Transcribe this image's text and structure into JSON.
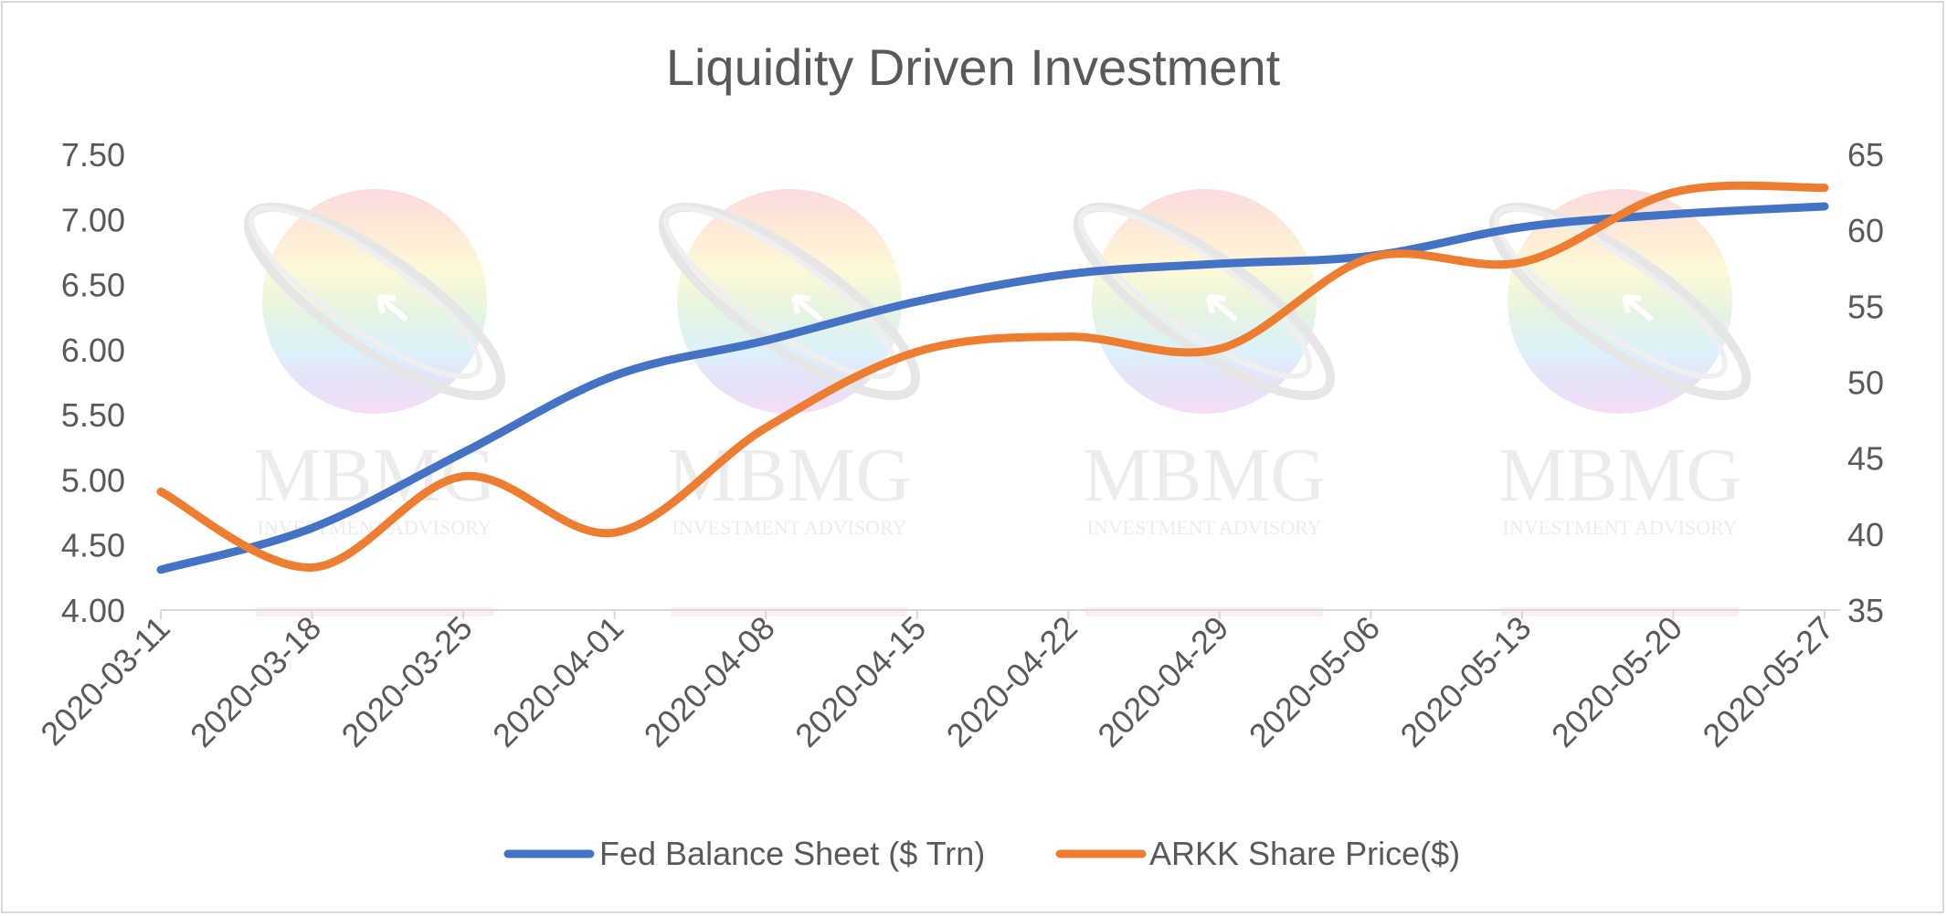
{
  "chart_data": {
    "type": "line",
    "title": "Liquidity Driven Investment",
    "x": [
      "2020-03-11",
      "2020-03-18",
      "2020-03-25",
      "2020-04-01",
      "2020-04-08",
      "2020-04-15",
      "2020-04-22",
      "2020-04-29",
      "2020-05-06",
      "2020-05-13",
      "2020-05-20",
      "2020-05-27"
    ],
    "y_left": {
      "lim": [
        4.0,
        7.5
      ],
      "ticks": [
        "7.50",
        "7.00",
        "6.50",
        "6.00",
        "5.50",
        "5.00",
        "4.50",
        "4.00"
      ]
    },
    "y_right": {
      "lim": [
        35,
        65
      ],
      "ticks": [
        "65",
        "60",
        "55",
        "50",
        "45",
        "40",
        "35"
      ]
    },
    "series": [
      {
        "name": "Fed Balance Sheet ($ Trn)",
        "axis": "left",
        "color": "#4472c4",
        "values": [
          4.31,
          4.63,
          5.21,
          5.8,
          6.07,
          6.37,
          6.58,
          6.66,
          6.72,
          6.94,
          7.04,
          7.1
        ]
      },
      {
        "name": "ARKK Share Price($)",
        "axis": "right",
        "color": "#ed7d31",
        "values": [
          42.8,
          37.8,
          43.8,
          40.1,
          47.0,
          52.0,
          53.0,
          52.2,
          58.2,
          57.9,
          62.5,
          62.8
        ]
      }
    ],
    "legend": "bottom",
    "grid": false
  },
  "watermark": {
    "brand": "MBMG",
    "tagline": "INVESTMENT ADVISORY"
  }
}
